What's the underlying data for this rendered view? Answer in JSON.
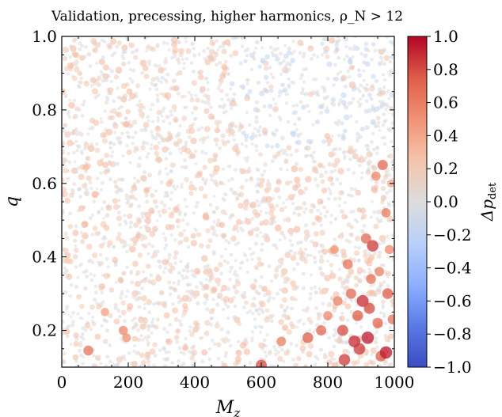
{
  "chart_data": {
    "type": "scatter",
    "title": "Validation, precessing, higher harmonics, ρ_N > 12",
    "xlabel": "M_z",
    "ylabel": "q",
    "xlim": [
      0,
      1000
    ],
    "ylim": [
      0.1,
      1.0
    ],
    "xticks": [
      "0",
      "200",
      "400",
      "600",
      "800",
      "1000"
    ],
    "yticks": [
      "0.2",
      "0.4",
      "0.6",
      "0.8",
      "1.0"
    ],
    "colorbar": {
      "label": "Δp_det",
      "range": [
        -1.0,
        1.0
      ],
      "ticks": [
        "−1.0",
        "−0.8",
        "−0.6",
        "−0.4",
        "−0.2",
        "0.0",
        "0.2",
        "0.4",
        "0.6",
        "0.8",
        "1.0"
      ],
      "colormap": "coolwarm",
      "colors": [
        "#3b4cc0",
        "#dddddd",
        "#b40426"
      ]
    },
    "marker_size_encodes": "|Δp_det|",
    "grid": false,
    "highlighted_points": [
      {
        "x": 80,
        "y": 0.145,
        "value": 0.65
      },
      {
        "x": 100,
        "y": 0.57,
        "value": 0.3
      },
      {
        "x": 130,
        "y": 0.25,
        "value": 0.45
      },
      {
        "x": 185,
        "y": 0.2,
        "value": 0.55
      },
      {
        "x": 195,
        "y": 0.18,
        "value": 0.5
      },
      {
        "x": 600,
        "y": 0.105,
        "value": 0.8
      },
      {
        "x": 660,
        "y": 0.17,
        "value": 0.6
      },
      {
        "x": 740,
        "y": 0.18,
        "value": 0.75
      },
      {
        "x": 780,
        "y": 0.2,
        "value": 0.7
      },
      {
        "x": 800,
        "y": 0.24,
        "value": 0.55
      },
      {
        "x": 820,
        "y": 0.42,
        "value": 0.5
      },
      {
        "x": 830,
        "y": 0.28,
        "value": 0.6
      },
      {
        "x": 845,
        "y": 0.2,
        "value": 0.8
      },
      {
        "x": 850,
        "y": 0.12,
        "value": 0.85
      },
      {
        "x": 860,
        "y": 0.38,
        "value": 0.65
      },
      {
        "x": 870,
        "y": 0.3,
        "value": 0.7
      },
      {
        "x": 880,
        "y": 0.17,
        "value": 0.9
      },
      {
        "x": 890,
        "y": 0.24,
        "value": 0.75
      },
      {
        "x": 895,
        "y": 0.15,
        "value": 0.85
      },
      {
        "x": 905,
        "y": 0.28,
        "value": 0.9
      },
      {
        "x": 915,
        "y": 0.45,
        "value": 0.7
      },
      {
        "x": 920,
        "y": 0.18,
        "value": 0.95
      },
      {
        "x": 925,
        "y": 0.26,
        "value": 0.8
      },
      {
        "x": 930,
        "y": 0.34,
        "value": 0.65
      },
      {
        "x": 935,
        "y": 0.43,
        "value": 0.85
      },
      {
        "x": 945,
        "y": 0.62,
        "value": 0.55
      },
      {
        "x": 950,
        "y": 0.22,
        "value": 0.7
      },
      {
        "x": 955,
        "y": 0.36,
        "value": 0.6
      },
      {
        "x": 960,
        "y": 0.13,
        "value": 0.75
      },
      {
        "x": 965,
        "y": 0.65,
        "value": 0.7
      },
      {
        "x": 975,
        "y": 0.14,
        "value": 0.95
      },
      {
        "x": 975,
        "y": 0.52,
        "value": 0.6
      },
      {
        "x": 980,
        "y": 0.3,
        "value": 0.75
      },
      {
        "x": 985,
        "y": 0.42,
        "value": 0.55
      },
      {
        "x": 990,
        "y": 0.6,
        "value": 0.4
      },
      {
        "x": 995,
        "y": 0.23,
        "value": 0.65
      }
    ]
  }
}
